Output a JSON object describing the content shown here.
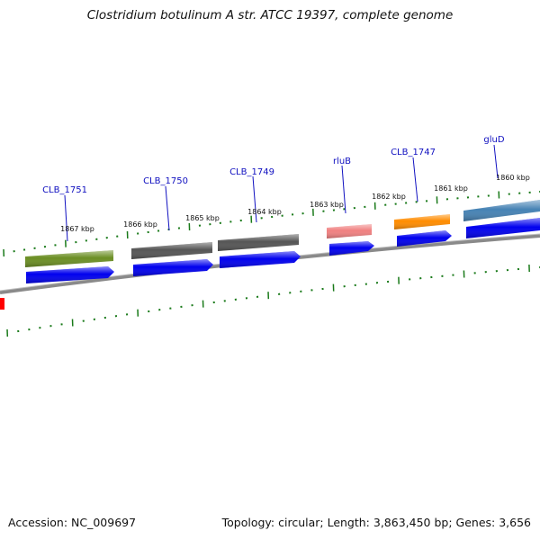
{
  "title": "Clostridium botulinum A str. ATCC 19397, complete genome",
  "footer": {
    "accession": "Accession: NC_009697",
    "summary": "Topology: circular; Length: 3,863,450 bp; Genes: 3,656"
  },
  "genes": [
    {
      "name": "CLB_1751",
      "color": "#6b8e23"
    },
    {
      "name": "CLB_1750",
      "color": "#555555"
    },
    {
      "name": "CLB_1749",
      "color": "#555555"
    },
    {
      "name": "rluB",
      "color": "#f08080"
    },
    {
      "name": "CLB_1747",
      "color": "#ff8c00"
    },
    {
      "name": "gluD",
      "color": "#4682b4"
    }
  ],
  "scale_labels": [
    "1867 kbp",
    "1866 kbp",
    "1865 kbp",
    "1864 kbp",
    "1863 kbp",
    "1862 kbp",
    "1861 kbp",
    "1860 kbp"
  ],
  "colors": {
    "cds_arrow": "#0000ee",
    "backbone": "#8a8a8a",
    "tick": "#1a7a1a",
    "label": "#1010c0",
    "offscreen_feature": "#ff0000"
  }
}
